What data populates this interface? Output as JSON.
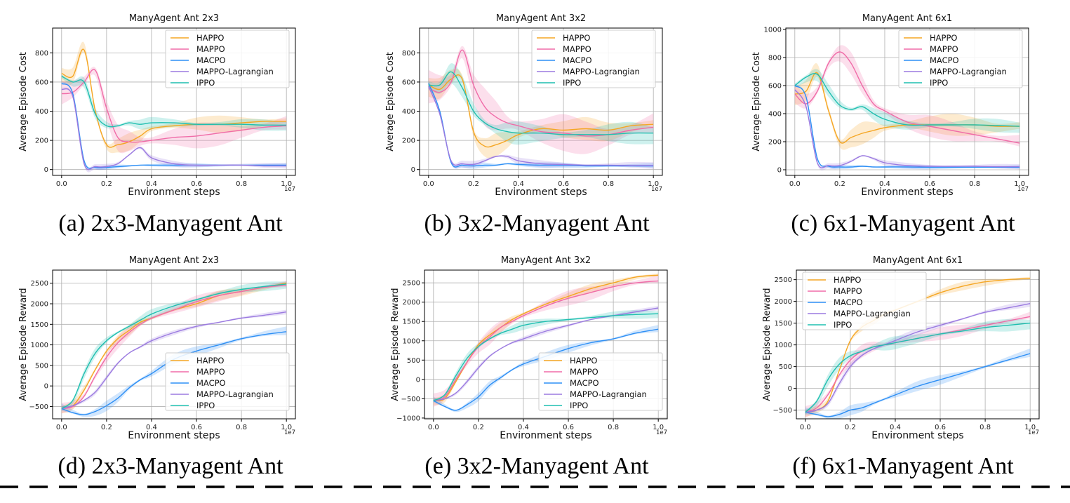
{
  "colors": {
    "HAPPO": "#f5a623",
    "MAPPO": "#f06ca8",
    "MACPO": "#2d8ff5",
    "MAPPO-Lagrangian": "#9b7ae0",
    "IPPO": "#1fbfb0"
  },
  "captions": [
    "(a) 2x3-Manyagent Ant",
    "(b) 3x2-Manyagent Ant",
    "(c) 6x1-Manyagent Ant",
    "(d) 2x3-Manyagent Ant",
    "(e) 3x2-Manyagent Ant",
    "(f) 6x1-Manyagent Ant"
  ],
  "chart_data": [
    {
      "type": "line",
      "title": "ManyAgent Ant 2x3",
      "xlabel": "Environment steps",
      "ylabel": "Average Episode Cost",
      "x_offset_label": "1e7",
      "xlim": [
        -0.04,
        1.04
      ],
      "ylim": [
        -40,
        970
      ],
      "xticks": [
        0.0,
        0.2,
        0.4,
        0.6,
        0.8,
        1.0
      ],
      "xtick_labels": [
        "0.0",
        "0.2",
        "0.4",
        "0.6",
        "0.8",
        "1.0"
      ],
      "yticks": [
        0,
        200,
        400,
        600,
        800
      ],
      "ytick_labels": [
        "0",
        "200",
        "400",
        "600",
        "800"
      ],
      "grid": true,
      "legend": "top-right",
      "x": [
        0.0,
        0.05,
        0.1,
        0.15,
        0.2,
        0.25,
        0.3,
        0.35,
        0.4,
        0.5,
        0.6,
        0.7,
        0.8,
        0.9,
        1.0
      ],
      "series": [
        {
          "name": "HAPPO",
          "values": [
            660,
            640,
            820,
            400,
            170,
            170,
            190,
            230,
            280,
            300,
            310,
            310,
            320,
            330,
            330
          ],
          "band": 60
        },
        {
          "name": "MAPPO",
          "values": [
            520,
            530,
            600,
            680,
            420,
            220,
            190,
            190,
            200,
            220,
            230,
            250,
            270,
            290,
            300
          ],
          "band": 90
        },
        {
          "name": "MACPO",
          "values": [
            590,
            520,
            60,
            15,
            15,
            20,
            25,
            30,
            30,
            30,
            30,
            30,
            30,
            30,
            30
          ],
          "band": 15
        },
        {
          "name": "MAPPO-Lagrangian",
          "values": [
            550,
            500,
            40,
            20,
            20,
            40,
            100,
            150,
            80,
            40,
            30,
            30,
            30,
            25,
            25
          ],
          "band": 20
        },
        {
          "name": "IPPO",
          "values": [
            640,
            600,
            600,
            380,
            300,
            300,
            320,
            310,
            320,
            320,
            310,
            310,
            310,
            305,
            305
          ],
          "band": 40
        }
      ]
    },
    {
      "type": "line",
      "title": "ManyAgent Ant 3x2",
      "xlabel": "Environment steps",
      "ylabel": "Average Episode Cost",
      "x_offset_label": "1e7",
      "xlim": [
        -0.04,
        1.04
      ],
      "ylim": [
        -40,
        970
      ],
      "xticks": [
        0.0,
        0.2,
        0.4,
        0.6,
        0.8,
        1.0
      ],
      "xtick_labels": [
        "0.0",
        "0.2",
        "0.4",
        "0.6",
        "0.8",
        "1.0"
      ],
      "yticks": [
        0,
        200,
        400,
        600,
        800
      ],
      "ytick_labels": [
        "0",
        "200",
        "400",
        "600",
        "800"
      ],
      "grid": true,
      "legend": "top-right",
      "x": [
        0.0,
        0.05,
        0.1,
        0.15,
        0.2,
        0.25,
        0.3,
        0.35,
        0.4,
        0.5,
        0.6,
        0.7,
        0.8,
        0.9,
        1.0
      ],
      "series": [
        {
          "name": "HAPPO",
          "values": [
            580,
            550,
            620,
            620,
            260,
            160,
            170,
            200,
            240,
            280,
            270,
            280,
            270,
            300,
            310
          ],
          "band": 80
        },
        {
          "name": "MAPPO",
          "values": [
            560,
            530,
            600,
            820,
            580,
            430,
            360,
            320,
            300,
            260,
            250,
            230,
            240,
            270,
            290
          ],
          "band": 130
        },
        {
          "name": "MACPO",
          "values": [
            590,
            400,
            50,
            30,
            25,
            30,
            30,
            40,
            35,
            30,
            30,
            25,
            25,
            25,
            25
          ],
          "band": 20
        },
        {
          "name": "MAPPO-Lagrangian",
          "values": [
            570,
            380,
            60,
            40,
            35,
            60,
            90,
            90,
            60,
            40,
            35,
            30,
            30,
            28,
            28
          ],
          "band": 25
        },
        {
          "name": "IPPO",
          "values": [
            580,
            580,
            670,
            560,
            400,
            320,
            280,
            260,
            250,
            250,
            240,
            240,
            240,
            250,
            250
          ],
          "band": 80
        }
      ]
    },
    {
      "type": "line",
      "title": "ManyAgent Ant 6x1",
      "xlabel": "Environment steps",
      "ylabel": "Average Episode Cost",
      "x_offset_label": "1e7",
      "xlim": [
        -0.04,
        1.04
      ],
      "ylim": [
        -40,
        1010
      ],
      "xticks": [
        0.0,
        0.2,
        0.4,
        0.6,
        0.8,
        1.0
      ],
      "xtick_labels": [
        "0.0",
        "0.2",
        "0.4",
        "0.6",
        "0.8",
        "1.0"
      ],
      "yticks": [
        0,
        200,
        400,
        600,
        800,
        1000
      ],
      "ytick_labels": [
        "0",
        "200",
        "400",
        "600",
        "800",
        "1000"
      ],
      "grid": true,
      "legend": "top-right",
      "x": [
        0.0,
        0.05,
        0.1,
        0.15,
        0.2,
        0.25,
        0.3,
        0.35,
        0.4,
        0.5,
        0.6,
        0.7,
        0.8,
        0.9,
        1.0
      ],
      "series": [
        {
          "name": "HAPPO",
          "values": [
            540,
            560,
            690,
            420,
            200,
            230,
            260,
            280,
            300,
            320,
            320,
            320,
            320,
            310,
            310
          ],
          "band": 80
        },
        {
          "name": "MAPPO",
          "values": [
            540,
            470,
            560,
            760,
            840,
            760,
            600,
            470,
            420,
            340,
            310,
            280,
            250,
            220,
            190
          ],
          "band": 80
        },
        {
          "name": "MACPO",
          "values": [
            600,
            520,
            80,
            25,
            20,
            20,
            25,
            20,
            20,
            20,
            18,
            18,
            18,
            18,
            18
          ],
          "band": 15
        },
        {
          "name": "MAPPO-Lagrangian",
          "values": [
            570,
            450,
            50,
            30,
            30,
            60,
            100,
            80,
            50,
            30,
            25,
            25,
            25,
            22,
            22
          ],
          "band": 20
        },
        {
          "name": "IPPO",
          "values": [
            600,
            660,
            680,
            560,
            460,
            430,
            450,
            400,
            360,
            320,
            320,
            320,
            320,
            315,
            310
          ],
          "band": 50
        }
      ]
    },
    {
      "type": "line",
      "title": "ManyAgent Ant 2x3",
      "xlabel": "Environment steps",
      "ylabel": "Average Episode Reward",
      "x_offset_label": "1e7",
      "xlim": [
        -0.04,
        1.04
      ],
      "ylim": [
        -800,
        2820
      ],
      "xticks": [
        0.0,
        0.2,
        0.4,
        0.6,
        0.8,
        1.0
      ],
      "xtick_labels": [
        "0.0",
        "0.2",
        "0.4",
        "0.6",
        "0.8",
        "1.0"
      ],
      "yticks": [
        -500,
        0,
        500,
        1000,
        1500,
        2000,
        2500
      ],
      "ytick_labels": [
        "−500",
        "0",
        "500",
        "1000",
        "1500",
        "2000",
        "2500"
      ],
      "grid": true,
      "legend": "bottom-right",
      "x": [
        0.0,
        0.05,
        0.1,
        0.15,
        0.2,
        0.25,
        0.3,
        0.35,
        0.4,
        0.5,
        0.6,
        0.7,
        0.8,
        0.9,
        1.0
      ],
      "series": [
        {
          "name": "HAPPO",
          "values": [
            -550,
            -480,
            -100,
            400,
            850,
            1150,
            1350,
            1550,
            1650,
            1850,
            2000,
            2200,
            2300,
            2400,
            2500
          ],
          "band": 120
        },
        {
          "name": "MAPPO",
          "values": [
            -550,
            -500,
            -250,
            250,
            700,
            1050,
            1300,
            1500,
            1650,
            1850,
            2050,
            2200,
            2300,
            2400,
            2450
          ],
          "band": 150
        },
        {
          "name": "MACPO",
          "values": [
            -550,
            -650,
            -700,
            -620,
            -480,
            -300,
            -50,
            150,
            300,
            650,
            850,
            1000,
            1150,
            1250,
            1320
          ],
          "band": 130
        },
        {
          "name": "MAPPO-Lagrangian",
          "values": [
            -550,
            -480,
            -350,
            -150,
            200,
            550,
            800,
            950,
            1100,
            1300,
            1450,
            1550,
            1650,
            1720,
            1800
          ],
          "band": 60
        },
        {
          "name": "IPPO",
          "values": [
            -550,
            -350,
            300,
            800,
            1100,
            1300,
            1450,
            1600,
            1750,
            1950,
            2100,
            2250,
            2350,
            2420,
            2480
          ],
          "band": 120
        }
      ]
    },
    {
      "type": "line",
      "title": "ManyAgent Ant 3x2",
      "xlabel": "Environment steps",
      "ylabel": "Average Episode Reward",
      "x_offset_label": "1e7",
      "xlim": [
        -0.04,
        1.04
      ],
      "ylim": [
        -1020,
        2830
      ],
      "xticks": [
        0.0,
        0.2,
        0.4,
        0.6,
        0.8,
        1.0
      ],
      "xtick_labels": [
        "0.0",
        "0.2",
        "0.4",
        "0.6",
        "0.8",
        "1.0"
      ],
      "yticks": [
        -1000,
        -500,
        0,
        500,
        1000,
        1500,
        2000,
        2500
      ],
      "ytick_labels": [
        "−1000",
        "−500",
        "0",
        "500",
        "1000",
        "1500",
        "2000",
        "2500"
      ],
      "grid": true,
      "legend": "bottom-right",
      "x": [
        0.0,
        0.05,
        0.1,
        0.15,
        0.2,
        0.25,
        0.3,
        0.35,
        0.4,
        0.5,
        0.6,
        0.7,
        0.8,
        0.9,
        1.0
      ],
      "series": [
        {
          "name": "HAPPO",
          "values": [
            -550,
            -500,
            -50,
            450,
            900,
            1150,
            1350,
            1550,
            1700,
            1950,
            2150,
            2350,
            2500,
            2650,
            2700
          ],
          "band": 120
        },
        {
          "name": "MAPPO",
          "values": [
            -550,
            -450,
            0,
            450,
            850,
            1100,
            1350,
            1500,
            1650,
            1900,
            2100,
            2250,
            2400,
            2500,
            2550
          ],
          "band": 200
        },
        {
          "name": "MACPO",
          "values": [
            -550,
            -700,
            -800,
            -650,
            -450,
            -150,
            50,
            250,
            400,
            600,
            800,
            950,
            1050,
            1200,
            1300
          ],
          "band": 110
        },
        {
          "name": "MAPPO-Lagrangian",
          "values": [
            -550,
            -500,
            -350,
            -50,
            300,
            600,
            800,
            950,
            1050,
            1250,
            1400,
            1550,
            1650,
            1750,
            1850
          ],
          "band": 60
        },
        {
          "name": "IPPO",
          "values": [
            -550,
            -400,
            100,
            550,
            850,
            1050,
            1200,
            1300,
            1400,
            1500,
            1550,
            1600,
            1650,
            1680,
            1700
          ],
          "band": 120
        }
      ]
    },
    {
      "type": "line",
      "title": "ManyAgent Ant 6x1",
      "xlabel": "Environment steps",
      "ylabel": "Average Episode Reward",
      "x_offset_label": "1e7",
      "xlim": [
        -0.04,
        1.04
      ],
      "ylim": [
        -700,
        2720
      ],
      "xticks": [
        0.0,
        0.2,
        0.4,
        0.6,
        0.8,
        1.0
      ],
      "xtick_labels": [
        "0.0",
        "0.2",
        "0.4",
        "0.6",
        "0.8",
        "1.0"
      ],
      "yticks": [
        -500,
        0,
        500,
        1000,
        1500,
        2000,
        2500
      ],
      "ytick_labels": [
        "−500",
        "0",
        "500",
        "1000",
        "1500",
        "2000",
        "2500"
      ],
      "grid": true,
      "legend": "top-left",
      "x": [
        0.0,
        0.05,
        0.1,
        0.15,
        0.2,
        0.25,
        0.3,
        0.35,
        0.4,
        0.5,
        0.6,
        0.7,
        0.8,
        0.9,
        1.0
      ],
      "series": [
        {
          "name": "HAPPO",
          "values": [
            -550,
            -500,
            -300,
            400,
            1100,
            1400,
            1550,
            1700,
            1800,
            2000,
            2200,
            2350,
            2450,
            2500,
            2530
          ],
          "band": 100
        },
        {
          "name": "MAPPO",
          "values": [
            -550,
            -450,
            -150,
            300,
            650,
            850,
            950,
            1000,
            1050,
            1150,
            1250,
            1350,
            1450,
            1550,
            1650
          ],
          "band": 150
        },
        {
          "name": "MACPO",
          "values": [
            -550,
            -600,
            -650,
            -600,
            -500,
            -450,
            -350,
            -250,
            -150,
            50,
            200,
            350,
            500,
            650,
            800
          ],
          "band": 120
        },
        {
          "name": "MAPPO-Lagrangian",
          "values": [
            -550,
            -500,
            -350,
            100,
            500,
            750,
            900,
            1000,
            1100,
            1300,
            1450,
            1600,
            1750,
            1850,
            1950
          ],
          "band": 80
        },
        {
          "name": "IPPO",
          "values": [
            -550,
            -300,
            200,
            550,
            750,
            850,
            950,
            1000,
            1050,
            1150,
            1250,
            1320,
            1400,
            1450,
            1500
          ],
          "band": 150
        }
      ]
    }
  ]
}
